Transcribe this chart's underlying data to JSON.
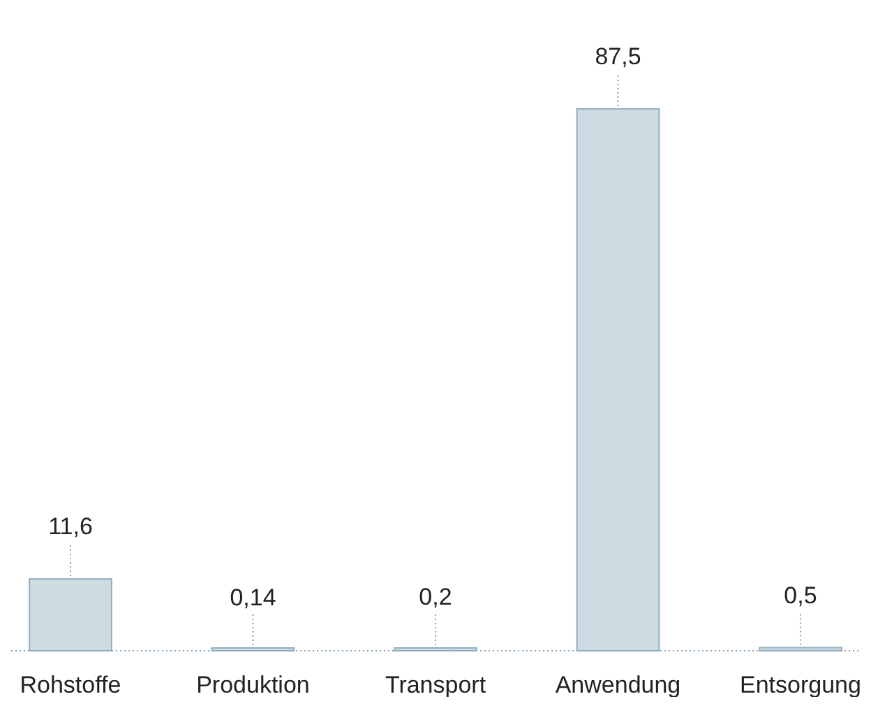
{
  "chart_data": {
    "type": "bar",
    "categories": [
      "Rohstoffe",
      "Produktion",
      "Transport",
      "Anwendung",
      "Entsorgung"
    ],
    "values": [
      11.6,
      0.14,
      0.2,
      87.5,
      0.5
    ],
    "value_labels": [
      "11,6",
      "0,14",
      "0,2",
      "87,5",
      "0,5"
    ],
    "color": "#cfdbe3"
  }
}
